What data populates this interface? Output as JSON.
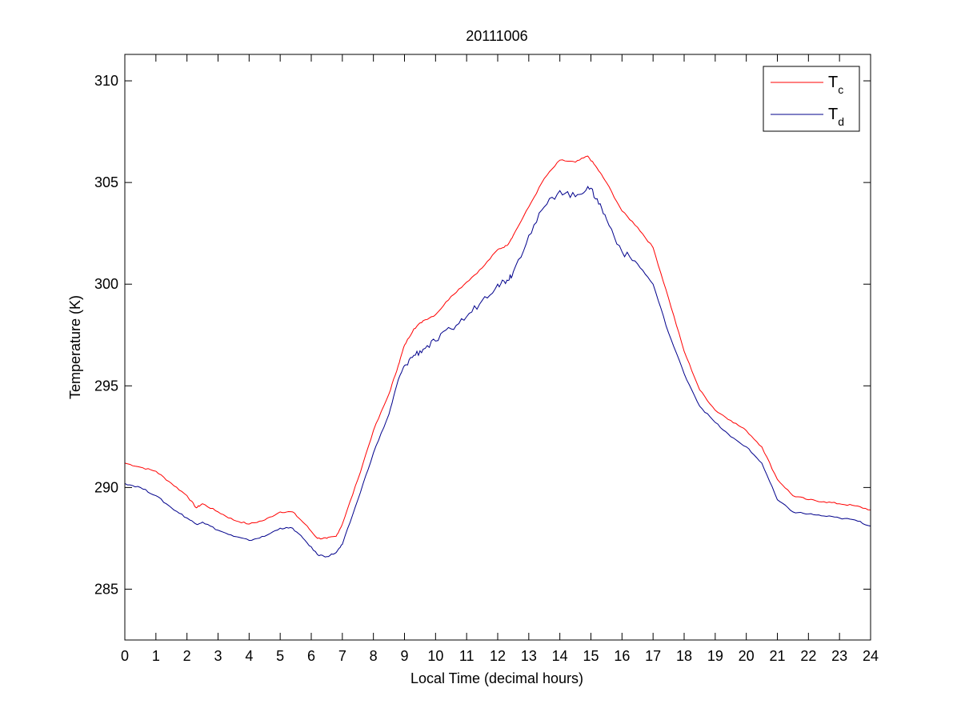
{
  "chart_data": {
    "type": "line",
    "title": "20111006",
    "xlabel": "Local Time (decimal hours)",
    "ylabel": "Temperature (K)",
    "xlim": [
      0,
      24
    ],
    "ylim": [
      282.5,
      311.3
    ],
    "grid": false,
    "legend_placement": "top-right",
    "x_ticks": [
      "0",
      "1",
      "2",
      "3",
      "4",
      "5",
      "6",
      "7",
      "8",
      "9",
      "10",
      "11",
      "12",
      "13",
      "14",
      "15",
      "16",
      "17",
      "18",
      "19",
      "20",
      "21",
      "22",
      "23",
      "24"
    ],
    "y_ticks": [
      "285",
      "290",
      "295",
      "300",
      "305",
      "310"
    ],
    "legend": [
      {
        "main": "T",
        "sub": "c",
        "color": "#ff0000"
      },
      {
        "main": "T",
        "sub": "d",
        "color": "#00008b"
      }
    ],
    "series": [
      {
        "name": "T_c",
        "color": "#ff0000",
        "x": [
          0,
          0.5,
          1,
          1.5,
          2,
          2.3,
          2.5,
          3,
          3.5,
          4,
          4.5,
          5,
          5.4,
          5.8,
          6.2,
          6.5,
          6.8,
          7,
          7.5,
          8,
          8.5,
          8.8,
          9,
          9.3,
          9.6,
          10,
          10.5,
          11,
          11.5,
          12,
          12.3,
          12.5,
          13,
          13.5,
          14,
          14.5,
          14.9,
          15.2,
          15.5,
          16,
          16.5,
          17,
          17.5,
          18,
          18.5,
          19,
          19.5,
          20,
          20.5,
          21,
          21.5,
          22,
          22.5,
          23,
          23.5,
          24
        ],
        "y": [
          291.2,
          291.0,
          290.8,
          290.2,
          289.6,
          289.0,
          289.2,
          288.8,
          288.4,
          288.2,
          288.4,
          288.8,
          288.8,
          288.2,
          287.5,
          287.5,
          287.6,
          288.2,
          290.4,
          292.8,
          294.6,
          296.0,
          297.0,
          297.8,
          298.2,
          298.5,
          299.4,
          300.1,
          300.8,
          301.7,
          301.9,
          302.4,
          303.8,
          305.2,
          306.1,
          306.0,
          306.3,
          305.7,
          305.0,
          303.6,
          302.8,
          301.8,
          299.3,
          296.7,
          294.8,
          293.8,
          293.3,
          292.8,
          292.0,
          290.4,
          289.6,
          289.4,
          289.3,
          289.2,
          289.1,
          288.9
        ]
      },
      {
        "name": "T_d",
        "color": "#00008b",
        "x": [
          0,
          0.5,
          1,
          1.5,
          2,
          2.3,
          2.5,
          3,
          3.5,
          4,
          4.5,
          5,
          5.4,
          5.8,
          6.2,
          6.5,
          6.8,
          7,
          7.5,
          8,
          8.5,
          8.8,
          9,
          9.3,
          9.6,
          10,
          10.5,
          11,
          11.5,
          12,
          12.3,
          12.5,
          13,
          13.5,
          14,
          14.5,
          14.9,
          15.2,
          15.5,
          16,
          16.5,
          17,
          17.5,
          18,
          18.5,
          19,
          19.5,
          20,
          20.5,
          21,
          21.5,
          22,
          22.5,
          23,
          23.5,
          24
        ],
        "y": [
          290.2,
          290.0,
          289.6,
          289.0,
          288.5,
          288.2,
          288.3,
          287.9,
          287.6,
          287.4,
          287.6,
          288.0,
          288.0,
          287.4,
          286.7,
          286.6,
          286.8,
          287.2,
          289.4,
          291.7,
          293.6,
          295.3,
          296.0,
          296.5,
          296.8,
          297.2,
          297.8,
          298.4,
          299.2,
          300.0,
          300.2,
          300.6,
          302.4,
          303.8,
          304.6,
          304.3,
          304.8,
          304.2,
          303.2,
          301.6,
          301.0,
          300.0,
          297.6,
          295.6,
          294.0,
          293.2,
          292.5,
          292.0,
          291.2,
          289.4,
          288.8,
          288.7,
          288.6,
          288.5,
          288.4,
          288.1
        ]
      }
    ]
  }
}
